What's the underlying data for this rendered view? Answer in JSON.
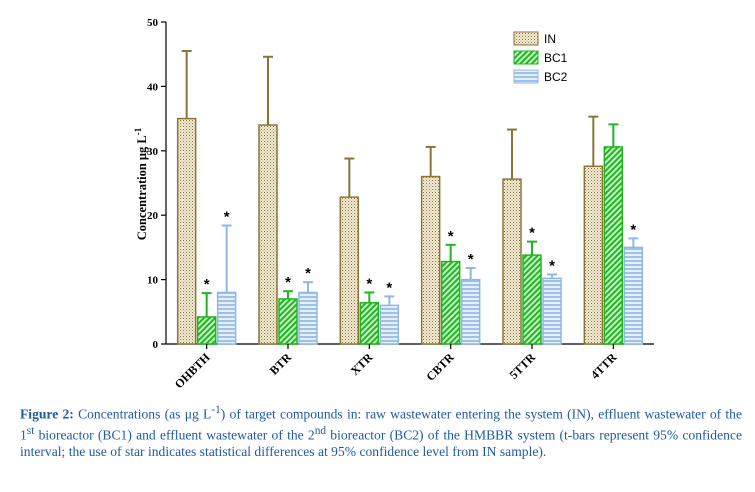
{
  "chart_data": {
    "type": "bar",
    "ylabel_main": "Concentration ",
    "ylabel_unit": "μg L",
    "ylabel_exp": "-1",
    "ylim": [
      0,
      50
    ],
    "yticks": [
      "0",
      "10",
      "20",
      "30",
      "40",
      "50"
    ],
    "categories": [
      "OHBTH",
      "BTR",
      "XTR",
      "CBTR",
      "5TTR",
      "4TTR"
    ],
    "series": [
      {
        "name": "IN",
        "values": [
          35.0,
          34.0,
          22.8,
          26.0,
          25.6,
          27.6
        ],
        "err_upper": [
          45.5,
          44.6,
          28.8,
          30.6,
          33.3,
          35.3
        ],
        "stars": [
          false,
          false,
          false,
          false,
          false,
          false
        ],
        "color": "#8b7536",
        "fill": "#efe6cf"
      },
      {
        "name": "BC1",
        "values": [
          4.2,
          7.0,
          6.4,
          12.8,
          13.8,
          30.6
        ],
        "err_upper": [
          7.9,
          8.2,
          8.0,
          15.4,
          15.9,
          34.1
        ],
        "stars": [
          true,
          true,
          true,
          true,
          true,
          false
        ],
        "color": "#21b521",
        "fill": "#a9e6a9"
      },
      {
        "name": "BC2",
        "values": [
          8.0,
          8.0,
          6.0,
          10.0,
          10.2,
          15.0
        ],
        "err_upper": [
          18.4,
          9.6,
          7.4,
          11.8,
          10.8,
          16.4
        ],
        "stars": [
          true,
          true,
          true,
          true,
          true,
          true
        ],
        "color": "#8fb8e4",
        "fill": "#c7dcf3"
      }
    ],
    "star_symbol": "*",
    "legend_position": "top-right",
    "grid": false
  },
  "caption": {
    "label": "Figure 2:",
    "t1": " Concentrations (as μg L",
    "sup1": "-1",
    "t2": ") of target compounds in: raw wastewater entering the system (IN), effluent wastewater of the 1",
    "sup2": "st",
    "t3": " bioreactor (BC1) and effluent wastewater of the 2",
    "sup3": "nd",
    "t4": " bioreactor (BC2) of the HMBBR system (t-bars represent 95% confidence interval; the use of star indicates statistical differences at 95% confidence level from IN sample)."
  }
}
